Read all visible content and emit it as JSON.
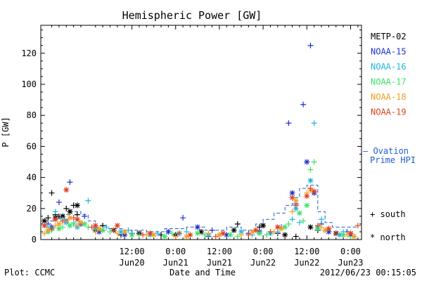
{
  "chart_data": {
    "type": "scatter",
    "title": "Hemispheric Power [GW]",
    "xlabel": "Date and Time",
    "ylabel": "P [GW]",
    "ylim": [
      0,
      138
    ],
    "xlim_hours": [
      -13,
      75
    ],
    "x_unit": "hours after 2012-06-20 00:00 UT",
    "yticks": [
      0,
      20,
      40,
      60,
      80,
      100,
      120
    ],
    "yticklabels": [
      "0",
      "20",
      "40",
      "60",
      "80",
      "100",
      "120"
    ],
    "xticks": [
      {
        "hour": 12,
        "time": "12:00",
        "date": "Jun20"
      },
      {
        "hour": 24,
        "time": "0:00",
        "date": "Jun21"
      },
      {
        "hour": 36,
        "time": "12:00",
        "date": "Jun21"
      },
      {
        "hour": 48,
        "time": "0:00",
        "date": "Jun22"
      },
      {
        "hour": 60,
        "time": "12:00",
        "date": "Jun22"
      },
      {
        "hour": 72,
        "time": "0:00",
        "date": "Jun23"
      }
    ],
    "legend": {
      "placement": "right",
      "entries": [
        {
          "name": "METP-02",
          "color": "#000000"
        },
        {
          "name": "NOAA-15",
          "color": "#1e2fd0"
        },
        {
          "name": "NOAA-16",
          "color": "#1fb7dc"
        },
        {
          "name": "NOAA-17",
          "color": "#3fe06a"
        },
        {
          "name": "NOAA-18",
          "color": "#f0a020"
        },
        {
          "name": "NOAA-19",
          "color": "#e0401e"
        }
      ],
      "ovation_label_1": "– Ovation",
      "ovation_label_2": "Prime HPI",
      "south_label": "+ south",
      "north_label": "* north"
    },
    "ovation_line": {
      "color": "#1e5fd0",
      "points": [
        [
          -12,
          12
        ],
        [
          -9,
          12
        ],
        [
          -9,
          14
        ],
        [
          -7,
          14
        ],
        [
          -7,
          16
        ],
        [
          -5,
          16
        ],
        [
          -5,
          18
        ],
        [
          -2,
          18
        ],
        [
          -2,
          16
        ],
        [
          0,
          16
        ],
        [
          0,
          12
        ],
        [
          2,
          12
        ],
        [
          2,
          9
        ],
        [
          5,
          9
        ],
        [
          5,
          7
        ],
        [
          10,
          7
        ],
        [
          10,
          6
        ],
        [
          16,
          6
        ],
        [
          16,
          5
        ],
        [
          21,
          5
        ],
        [
          21,
          7
        ],
        [
          27,
          7
        ],
        [
          27,
          8
        ],
        [
          32,
          8
        ],
        [
          32,
          6
        ],
        [
          38,
          6
        ],
        [
          38,
          8
        ],
        [
          42,
          8
        ],
        [
          42,
          6
        ],
        [
          46,
          6
        ],
        [
          46,
          10
        ],
        [
          48,
          10
        ],
        [
          48,
          13
        ],
        [
          51,
          13
        ],
        [
          51,
          17
        ],
        [
          54,
          17
        ],
        [
          54,
          22
        ],
        [
          56,
          22
        ],
        [
          56,
          27
        ],
        [
          58,
          27
        ],
        [
          58,
          33
        ],
        [
          60,
          33
        ],
        [
          60,
          35
        ],
        [
          63,
          35
        ],
        [
          63,
          18
        ],
        [
          65,
          18
        ],
        [
          65,
          11
        ],
        [
          67,
          11
        ],
        [
          67,
          8
        ],
        [
          74,
          8
        ]
      ]
    },
    "series": [
      {
        "name": "METP-02",
        "color": "#000000",
        "south": [
          [
            -11,
            14
          ],
          [
            -10,
            30
          ],
          [
            -9,
            16
          ],
          [
            -8,
            15
          ],
          [
            -6,
            20
          ],
          [
            -4,
            22
          ],
          [
            -3,
            16
          ],
          [
            4,
            9
          ],
          [
            9,
            3
          ],
          [
            20,
            3
          ],
          [
            33,
            2
          ],
          [
            41,
            10
          ],
          [
            47,
            8
          ],
          [
            52,
            4
          ],
          [
            57,
            2
          ],
          [
            63,
            6
          ],
          [
            70,
            3
          ]
        ],
        "north": [
          [
            -12,
            12
          ],
          [
            -9,
            14
          ],
          [
            -7,
            15
          ],
          [
            -5,
            18
          ],
          [
            -3,
            22
          ],
          [
            2,
            6
          ],
          [
            7,
            6
          ],
          [
            14,
            4
          ],
          [
            24,
            3
          ],
          [
            31,
            5
          ],
          [
            40,
            6
          ],
          [
            48,
            9
          ],
          [
            54,
            3
          ],
          [
            61,
            8
          ],
          [
            68,
            4
          ]
        ]
      },
      {
        "name": "NOAA-15",
        "color": "#1e2fd0",
        "south": [
          [
            -11,
            10
          ],
          [
            -8,
            24
          ],
          [
            -5,
            37
          ],
          [
            -1,
            15
          ],
          [
            4,
            6
          ],
          [
            12,
            4
          ],
          [
            26,
            14
          ],
          [
            34,
            6
          ],
          [
            44,
            4
          ],
          [
            53,
            8
          ],
          [
            55,
            75
          ],
          [
            57,
            23
          ],
          [
            59,
            87
          ],
          [
            61,
            125
          ],
          [
            64,
            10
          ],
          [
            71,
            5
          ]
        ],
        "north": [
          [
            -10,
            8
          ],
          [
            -6,
            12
          ],
          [
            -2,
            10
          ],
          [
            3,
            5
          ],
          [
            10,
            3
          ],
          [
            22,
            5
          ],
          [
            30,
            8
          ],
          [
            38,
            3
          ],
          [
            47,
            5
          ],
          [
            56,
            30
          ],
          [
            60,
            50
          ],
          [
            62,
            30
          ],
          [
            66,
            5
          ],
          [
            72,
            3
          ]
        ]
      },
      {
        "name": "NOAA-16",
        "color": "#1fb7dc",
        "south": [
          [
            -11,
            8
          ],
          [
            -9,
            18
          ],
          [
            -7,
            13
          ],
          [
            -4,
            10
          ],
          [
            0,
            25
          ],
          [
            5,
            8
          ],
          [
            11,
            6
          ],
          [
            19,
            4
          ],
          [
            27,
            5
          ],
          [
            36,
            3
          ],
          [
            45,
            3
          ],
          [
            52,
            5
          ],
          [
            56,
            13
          ],
          [
            58,
            11
          ],
          [
            62,
            75
          ],
          [
            64,
            13
          ],
          [
            70,
            5
          ]
        ],
        "north": [
          [
            -10,
            7
          ],
          [
            -6,
            11
          ],
          [
            -3,
            8
          ],
          [
            2,
            7
          ],
          [
            9,
            5
          ],
          [
            17,
            3
          ],
          [
            25,
            4
          ],
          [
            33,
            3
          ],
          [
            42,
            5
          ],
          [
            50,
            4
          ],
          [
            57,
            20
          ],
          [
            61,
            38
          ],
          [
            63,
            8
          ],
          [
            69,
            3
          ]
        ]
      },
      {
        "name": "NOAA-17",
        "color": "#3fe06a",
        "south": [
          [
            -10,
            6
          ],
          [
            -7,
            8
          ],
          [
            -4,
            11
          ],
          [
            0,
            8
          ],
          [
            6,
            5
          ],
          [
            14,
            3
          ],
          [
            23,
            4
          ],
          [
            32,
            3
          ],
          [
            41,
            2
          ],
          [
            49,
            3
          ],
          [
            55,
            10
          ],
          [
            59,
            12
          ],
          [
            61,
            45
          ],
          [
            62,
            50
          ],
          [
            65,
            6
          ],
          [
            72,
            2
          ]
        ],
        "north": [
          [
            -11,
            5
          ],
          [
            -8,
            7
          ],
          [
            -5,
            9
          ],
          [
            -1,
            10
          ],
          [
            4,
            6
          ],
          [
            12,
            3
          ],
          [
            21,
            2
          ],
          [
            30,
            4
          ],
          [
            39,
            3
          ],
          [
            47,
            4
          ],
          [
            54,
            8
          ],
          [
            58,
            17
          ],
          [
            60,
            22
          ],
          [
            63,
            7
          ],
          [
            70,
            3
          ]
        ]
      },
      {
        "name": "NOAA-18",
        "color": "#f0a020",
        "south": [
          [
            -12,
            4
          ],
          [
            -9,
            9
          ],
          [
            -6,
            12
          ],
          [
            -3,
            9
          ],
          [
            2,
            5
          ],
          [
            8,
            4
          ],
          [
            16,
            3
          ],
          [
            24,
            2
          ],
          [
            33,
            4
          ],
          [
            42,
            3
          ],
          [
            51,
            5
          ],
          [
            56,
            18
          ],
          [
            60,
            30
          ],
          [
            64,
            8
          ],
          [
            71,
            3
          ]
        ],
        "north": [
          [
            -11,
            6
          ],
          [
            -8,
            10
          ],
          [
            -5,
            14
          ],
          [
            -2,
            11
          ],
          [
            3,
            7
          ],
          [
            10,
            5
          ],
          [
            18,
            3
          ],
          [
            27,
            2
          ],
          [
            36,
            3
          ],
          [
            45,
            5
          ],
          [
            53,
            7
          ],
          [
            57,
            25
          ],
          [
            61,
            32
          ],
          [
            65,
            6
          ],
          [
            73,
            2
          ]
        ]
      },
      {
        "name": "NOAA-19",
        "color": "#e0401e",
        "south": [
          [
            -10,
            7
          ],
          [
            -7,
            12
          ],
          [
            -4,
            14
          ],
          [
            1,
            8
          ],
          [
            7,
            6
          ],
          [
            15,
            3
          ],
          [
            25,
            4
          ],
          [
            35,
            2
          ],
          [
            44,
            3
          ],
          [
            50,
            5
          ],
          [
            57,
            22
          ],
          [
            61,
            33
          ],
          [
            63,
            9
          ],
          [
            68,
            4
          ],
          [
            74,
            9
          ]
        ],
        "north": [
          [
            -12,
            9
          ],
          [
            -9,
            13
          ],
          [
            -6,
            32
          ],
          [
            -3,
            13
          ],
          [
            2,
            9
          ],
          [
            8,
            9
          ],
          [
            17,
            4
          ],
          [
            28,
            3
          ],
          [
            37,
            4
          ],
          [
            46,
            6
          ],
          [
            52,
            8
          ],
          [
            56,
            27
          ],
          [
            60,
            28
          ],
          [
            62,
            31
          ],
          [
            66,
            7
          ],
          [
            72,
            4
          ]
        ]
      }
    ]
  },
  "footer": {
    "plot_credit": "Plot: CCMC",
    "timestamp": "2012/06/23 00:15:05"
  }
}
